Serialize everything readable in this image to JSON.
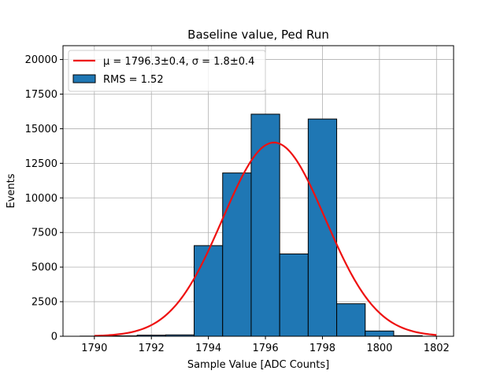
{
  "chart_data": {
    "type": "bar",
    "title": "Baseline value, Ped Run",
    "xlabel": "Sample Value [ADC Counts]",
    "ylabel": "Events",
    "xlim": [
      1788.9,
      1802.6
    ],
    "ylim": [
      0,
      21000
    ],
    "x_ticks": [
      1790,
      1792,
      1794,
      1796,
      1798,
      1800,
      1802
    ],
    "y_ticks": [
      0,
      2500,
      5000,
      7500,
      10000,
      12500,
      15000,
      17500,
      20000
    ],
    "grid": true,
    "legend_position": "top-left",
    "bin_edges": [
      1789.5,
      1790.5,
      1791.5,
      1792.5,
      1793.5,
      1794.5,
      1795.5,
      1796.5,
      1797.5,
      1798.5,
      1799.5,
      1800.5,
      1801.5
    ],
    "bins": [
      {
        "x0": 1789.5,
        "x1": 1790.5,
        "value": 10
      },
      {
        "x0": 1790.5,
        "x1": 1791.5,
        "value": 30
      },
      {
        "x0": 1791.5,
        "x1": 1792.5,
        "value": 80
      },
      {
        "x0": 1792.5,
        "x1": 1793.5,
        "value": 100
      },
      {
        "x0": 1793.5,
        "x1": 1794.5,
        "value": 6550
      },
      {
        "x0": 1794.5,
        "x1": 1795.5,
        "value": 11800
      },
      {
        "x0": 1795.5,
        "x1": 1796.5,
        "value": 16050
      },
      {
        "x0": 1796.5,
        "x1": 1797.5,
        "value": 5950
      },
      {
        "x0": 1797.5,
        "x1": 1798.5,
        "value": 15700
      },
      {
        "x0": 1798.5,
        "x1": 1799.5,
        "value": 2350
      },
      {
        "x0": 1799.5,
        "x1": 1800.5,
        "value": 380
      },
      {
        "x0": 1800.5,
        "x1": 1801.5,
        "value": 40
      }
    ],
    "fit": {
      "type": "gaussian",
      "mu": 1796.3,
      "sigma": 1.8,
      "amplitude": 14000,
      "x_range": [
        1790,
        1802
      ]
    },
    "series": [
      {
        "name": "$\\mu = 1796.3\\pm0.4$, $\\sigma = 1.8\\pm0.4$",
        "legend_text": "μ = 1796.3±0.4, σ = 1.8±0.4",
        "kind": "line",
        "color": "#e8141a"
      },
      {
        "name": "RMS = 1.52",
        "legend_text": "RMS = 1.52",
        "kind": "bar",
        "color": "#1f77b4"
      }
    ],
    "colors": {
      "bar_fill": "#1f77b4",
      "bar_edge": "#000000",
      "fit_line": "#ee1111",
      "grid": "#b0b0b0"
    }
  }
}
